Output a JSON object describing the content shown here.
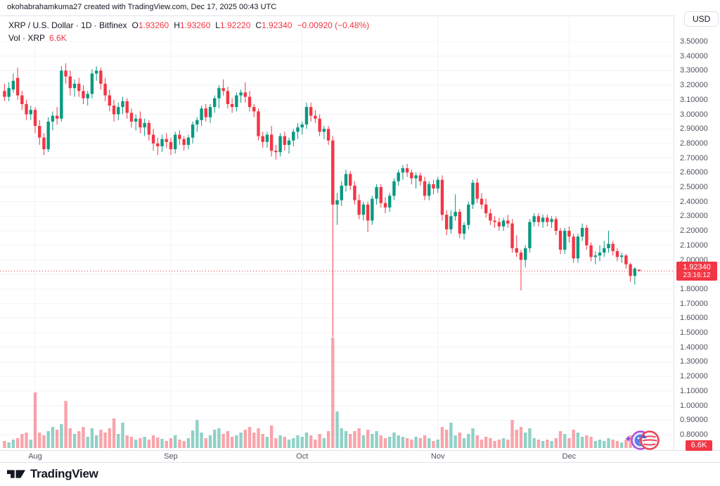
{
  "attribution": "okohabrahamkuma27 created with TradingView.com, Dec 17, 2025 00:43 UTC",
  "header": {
    "currency_button": "USD"
  },
  "legend": {
    "symbol": "XRP / U.S. Dollar · 1D · Bitfinex",
    "o_label": "O",
    "o_value": "1.93260",
    "h_label": "H",
    "h_value": "1.93260",
    "l_label": "L",
    "l_value": "1.92220",
    "c_label": "C",
    "c_value": "1.92340",
    "change": "−0.00920 (−0.48%)",
    "vol_label": "Vol · XRP",
    "vol_value": "6.6K"
  },
  "price_label": {
    "value": "1.92340",
    "countdown": "23:16:12"
  },
  "volume_axis_label": "6.6K",
  "footer_logo": "TradingView",
  "colors": {
    "up": "#089981",
    "down": "#F23645",
    "vol_up": "rgba(8,153,129,0.45)",
    "vol_down": "rgba(242,54,69,0.45)",
    "grid": "#F0F3FA",
    "axis_text": "#50535E",
    "text": "#131722",
    "border": "#E0E3EB",
    "accent_red": "#F23645"
  },
  "chart_data": {
    "type": "candlestick",
    "title": "XRP / U.S. Dollar · 1D · Bitfinex",
    "legend_position": "top-left",
    "grid": true,
    "y_axis": {
      "min": 0.8,
      "max": 3.5,
      "step": 0.1,
      "ticks": [
        "3.50000",
        "3.40000",
        "3.30000",
        "3.20000",
        "3.10000",
        "3.00000",
        "2.90000",
        "2.80000",
        "2.70000",
        "2.60000",
        "2.50000",
        "2.40000",
        "2.30000",
        "2.20000",
        "2.10000",
        "2.00000",
        "1.90000",
        "1.80000",
        "1.70000",
        "1.60000",
        "1.50000",
        "1.40000",
        "1.30000",
        "1.20000",
        "1.10000",
        "1.00000",
        "0.90000",
        "0.80000"
      ]
    },
    "x_axis": {
      "months": [
        {
          "label": "Aug",
          "index": 7
        },
        {
          "label": "Sep",
          "index": 38
        },
        {
          "label": "Oct",
          "index": 68
        },
        {
          "label": "Nov",
          "index": 99
        },
        {
          "label": "Dec",
          "index": 129
        }
      ]
    },
    "current_price": 1.9234,
    "current_volume": "6.6K",
    "candles_format": [
      "open",
      "high",
      "low",
      "close",
      "volume_rel"
    ],
    "candles": [
      [
        3.16,
        3.21,
        3.09,
        3.12,
        10
      ],
      [
        3.12,
        3.22,
        3.09,
        3.18,
        8
      ],
      [
        3.17,
        3.28,
        3.15,
        3.23,
        12
      ],
      [
        3.25,
        3.32,
        3.1,
        3.13,
        14
      ],
      [
        3.13,
        3.16,
        3.03,
        3.07,
        20
      ],
      [
        3.07,
        3.1,
        2.96,
        3.0,
        22
      ],
      [
        3.0,
        3.06,
        2.96,
        3.03,
        12
      ],
      [
        3.03,
        3.05,
        2.87,
        2.92,
        79
      ],
      [
        2.92,
        2.96,
        2.79,
        2.84,
        22
      ],
      [
        2.84,
        2.87,
        2.72,
        2.76,
        18
      ],
      [
        2.76,
        2.98,
        2.74,
        2.95,
        24
      ],
      [
        2.95,
        3.02,
        2.89,
        2.99,
        30
      ],
      [
        2.99,
        3.05,
        2.93,
        2.97,
        26
      ],
      [
        2.97,
        3.33,
        2.95,
        3.3,
        34
      ],
      [
        3.3,
        3.35,
        3.21,
        3.26,
        67
      ],
      [
        3.26,
        3.3,
        3.13,
        3.18,
        28
      ],
      [
        3.18,
        3.24,
        3.12,
        3.21,
        20
      ],
      [
        3.21,
        3.25,
        3.12,
        3.16,
        24
      ],
      [
        3.16,
        3.2,
        3.07,
        3.11,
        30
      ],
      [
        3.11,
        3.16,
        3.06,
        3.14,
        16
      ],
      [
        3.14,
        3.31,
        3.11,
        3.28,
        28
      ],
      [
        3.28,
        3.33,
        3.23,
        3.3,
        18
      ],
      [
        3.3,
        3.32,
        3.17,
        3.21,
        26
      ],
      [
        3.21,
        3.25,
        3.09,
        3.13,
        22
      ],
      [
        3.13,
        3.17,
        3.02,
        3.06,
        28
      ],
      [
        3.06,
        3.1,
        2.95,
        3.0,
        42
      ],
      [
        3.0,
        3.08,
        2.96,
        3.05,
        20
      ],
      [
        3.05,
        3.12,
        3.0,
        3.09,
        36
      ],
      [
        3.09,
        3.11,
        2.97,
        3.01,
        18
      ],
      [
        3.01,
        3.04,
        2.91,
        2.95,
        16
      ],
      [
        2.95,
        3.0,
        2.89,
        2.97,
        12
      ],
      [
        2.97,
        3.02,
        2.87,
        2.91,
        14
      ],
      [
        2.91,
        2.97,
        2.85,
        2.94,
        16
      ],
      [
        2.94,
        2.96,
        2.82,
        2.86,
        12
      ],
      [
        2.86,
        2.9,
        2.75,
        2.8,
        18
      ],
      [
        2.8,
        2.84,
        2.72,
        2.78,
        15
      ],
      [
        2.78,
        2.86,
        2.74,
        2.83,
        13
      ],
      [
        2.83,
        2.87,
        2.77,
        2.81,
        10
      ],
      [
        2.81,
        2.84,
        2.72,
        2.76,
        14
      ],
      [
        2.76,
        2.88,
        2.73,
        2.86,
        18
      ],
      [
        2.86,
        2.89,
        2.79,
        2.83,
        12
      ],
      [
        2.83,
        2.85,
        2.75,
        2.79,
        10
      ],
      [
        2.79,
        2.86,
        2.76,
        2.84,
        14
      ],
      [
        2.84,
        2.95,
        2.8,
        2.93,
        25
      ],
      [
        2.93,
        2.98,
        2.88,
        2.96,
        40
      ],
      [
        2.96,
        3.06,
        2.92,
        3.04,
        22
      ],
      [
        3.04,
        3.07,
        2.95,
        2.98,
        14
      ],
      [
        2.98,
        3.07,
        2.94,
        3.05,
        18
      ],
      [
        3.05,
        3.13,
        3.01,
        3.11,
        26
      ],
      [
        3.11,
        3.2,
        3.04,
        3.18,
        28
      ],
      [
        3.18,
        3.24,
        3.13,
        3.16,
        20
      ],
      [
        3.16,
        3.19,
        3.04,
        3.07,
        24
      ],
      [
        3.07,
        3.11,
        3.01,
        3.05,
        16
      ],
      [
        3.05,
        3.15,
        3.02,
        3.13,
        18
      ],
      [
        3.13,
        3.17,
        3.08,
        3.15,
        22
      ],
      [
        3.15,
        3.22,
        3.08,
        3.12,
        26
      ],
      [
        3.12,
        3.16,
        3.02,
        3.05,
        30
      ],
      [
        3.05,
        3.07,
        2.98,
        3.02,
        22
      ],
      [
        3.02,
        3.04,
        2.82,
        2.85,
        28
      ],
      [
        2.85,
        2.88,
        2.77,
        2.81,
        20
      ],
      [
        2.81,
        2.88,
        2.77,
        2.86,
        16
      ],
      [
        2.86,
        2.92,
        2.71,
        2.75,
        32
      ],
      [
        2.75,
        2.79,
        2.69,
        2.74,
        14
      ],
      [
        2.74,
        2.87,
        2.71,
        2.85,
        18
      ],
      [
        2.85,
        2.88,
        2.75,
        2.79,
        16
      ],
      [
        2.79,
        2.84,
        2.73,
        2.82,
        12
      ],
      [
        2.82,
        2.9,
        2.78,
        2.88,
        14
      ],
      [
        2.88,
        2.94,
        2.83,
        2.91,
        18
      ],
      [
        2.91,
        2.95,
        2.86,
        2.93,
        16
      ],
      [
        2.93,
        3.08,
        2.9,
        3.05,
        22
      ],
      [
        3.05,
        3.08,
        2.95,
        2.99,
        18
      ],
      [
        2.99,
        3.03,
        2.94,
        2.97,
        12
      ],
      [
        2.97,
        3.0,
        2.85,
        2.88,
        20
      ],
      [
        2.88,
        2.92,
        2.83,
        2.9,
        14
      ],
      [
        2.9,
        2.92,
        2.79,
        2.82,
        24
      ],
      [
        2.82,
        2.85,
        1.47,
        2.38,
        157
      ],
      [
        2.38,
        2.46,
        2.24,
        2.41,
        52
      ],
      [
        2.41,
        2.54,
        2.37,
        2.51,
        28
      ],
      [
        2.51,
        2.62,
        2.47,
        2.59,
        24
      ],
      [
        2.59,
        2.61,
        2.48,
        2.51,
        20
      ],
      [
        2.51,
        2.54,
        2.38,
        2.41,
        24
      ],
      [
        2.41,
        2.45,
        2.28,
        2.31,
        28
      ],
      [
        2.31,
        2.4,
        2.27,
        2.38,
        18
      ],
      [
        2.38,
        2.4,
        2.19,
        2.27,
        26
      ],
      [
        2.27,
        2.44,
        2.24,
        2.42,
        20
      ],
      [
        2.42,
        2.52,
        2.38,
        2.5,
        24
      ],
      [
        2.5,
        2.52,
        2.36,
        2.39,
        18
      ],
      [
        2.39,
        2.43,
        2.32,
        2.36,
        14
      ],
      [
        2.36,
        2.46,
        2.33,
        2.44,
        16
      ],
      [
        2.44,
        2.56,
        2.41,
        2.54,
        22
      ],
      [
        2.54,
        2.62,
        2.51,
        2.6,
        18
      ],
      [
        2.6,
        2.65,
        2.55,
        2.63,
        16
      ],
      [
        2.63,
        2.66,
        2.57,
        2.6,
        14
      ],
      [
        2.6,
        2.62,
        2.52,
        2.56,
        12
      ],
      [
        2.56,
        2.6,
        2.49,
        2.58,
        16
      ],
      [
        2.58,
        2.6,
        2.51,
        2.54,
        14
      ],
      [
        2.54,
        2.57,
        2.41,
        2.44,
        18
      ],
      [
        2.44,
        2.54,
        2.41,
        2.52,
        14
      ],
      [
        2.52,
        2.55,
        2.45,
        2.49,
        10
      ],
      [
        2.49,
        2.57,
        2.46,
        2.55,
        12
      ],
      [
        2.55,
        2.58,
        2.27,
        2.31,
        30
      ],
      [
        2.31,
        2.34,
        2.17,
        2.21,
        26
      ],
      [
        2.21,
        2.34,
        2.18,
        2.3,
        36
      ],
      [
        2.3,
        2.45,
        2.27,
        2.33,
        18
      ],
      [
        2.33,
        2.35,
        2.15,
        2.18,
        22
      ],
      [
        2.18,
        2.26,
        2.14,
        2.24,
        14
      ],
      [
        2.24,
        2.4,
        2.21,
        2.38,
        20
      ],
      [
        2.38,
        2.55,
        2.35,
        2.53,
        28
      ],
      [
        2.53,
        2.56,
        2.39,
        2.42,
        18
      ],
      [
        2.42,
        2.46,
        2.35,
        2.38,
        12
      ],
      [
        2.38,
        2.42,
        2.29,
        2.32,
        16
      ],
      [
        2.32,
        2.35,
        2.24,
        2.27,
        14
      ],
      [
        2.27,
        2.3,
        2.22,
        2.26,
        10
      ],
      [
        2.26,
        2.29,
        2.2,
        2.23,
        12
      ],
      [
        2.23,
        2.29,
        2.2,
        2.27,
        14
      ],
      [
        2.27,
        2.31,
        2.22,
        2.25,
        12
      ],
      [
        2.25,
        2.28,
        2.05,
        2.08,
        40
      ],
      [
        2.08,
        2.17,
        2.02,
        2.05,
        26
      ],
      [
        2.05,
        2.07,
        1.79,
        2.0,
        30
      ],
      [
        2.0,
        2.1,
        1.95,
        2.08,
        22
      ],
      [
        2.08,
        2.28,
        2.05,
        2.26,
        28
      ],
      [
        2.26,
        2.32,
        2.23,
        2.3,
        14
      ],
      [
        2.3,
        2.32,
        2.23,
        2.26,
        12
      ],
      [
        2.26,
        2.31,
        2.22,
        2.29,
        10
      ],
      [
        2.29,
        2.31,
        2.23,
        2.26,
        12
      ],
      [
        2.26,
        2.3,
        2.22,
        2.28,
        10
      ],
      [
        2.28,
        2.3,
        2.17,
        2.2,
        14
      ],
      [
        2.2,
        2.22,
        2.04,
        2.07,
        24
      ],
      [
        2.07,
        2.22,
        2.04,
        2.2,
        20
      ],
      [
        2.2,
        2.23,
        2.12,
        2.16,
        14
      ],
      [
        2.16,
        2.18,
        1.98,
        2.01,
        26
      ],
      [
        2.01,
        2.18,
        1.98,
        2.16,
        22
      ],
      [
        2.16,
        2.25,
        2.13,
        2.22,
        16
      ],
      [
        2.22,
        2.24,
        2.07,
        2.1,
        18
      ],
      [
        2.1,
        2.12,
        1.99,
        2.02,
        16
      ],
      [
        2.02,
        2.06,
        1.97,
        2.03,
        10
      ],
      [
        2.03,
        2.1,
        1.99,
        2.05,
        12
      ],
      [
        2.05,
        2.13,
        2.02,
        2.08,
        10
      ],
      [
        2.08,
        2.2,
        2.05,
        2.11,
        14
      ],
      [
        2.11,
        2.13,
        2.03,
        2.06,
        12
      ],
      [
        2.06,
        2.08,
        1.99,
        2.02,
        10
      ],
      [
        2.02,
        2.05,
        1.98,
        2.03,
        8
      ],
      [
        2.03,
        2.04,
        1.94,
        1.97,
        12
      ],
      [
        1.97,
        1.98,
        1.85,
        1.89,
        18
      ],
      [
        1.89,
        1.95,
        1.83,
        1.94,
        14
      ],
      [
        1.9326,
        1.9326,
        1.9222,
        1.9234,
        3
      ]
    ]
  }
}
